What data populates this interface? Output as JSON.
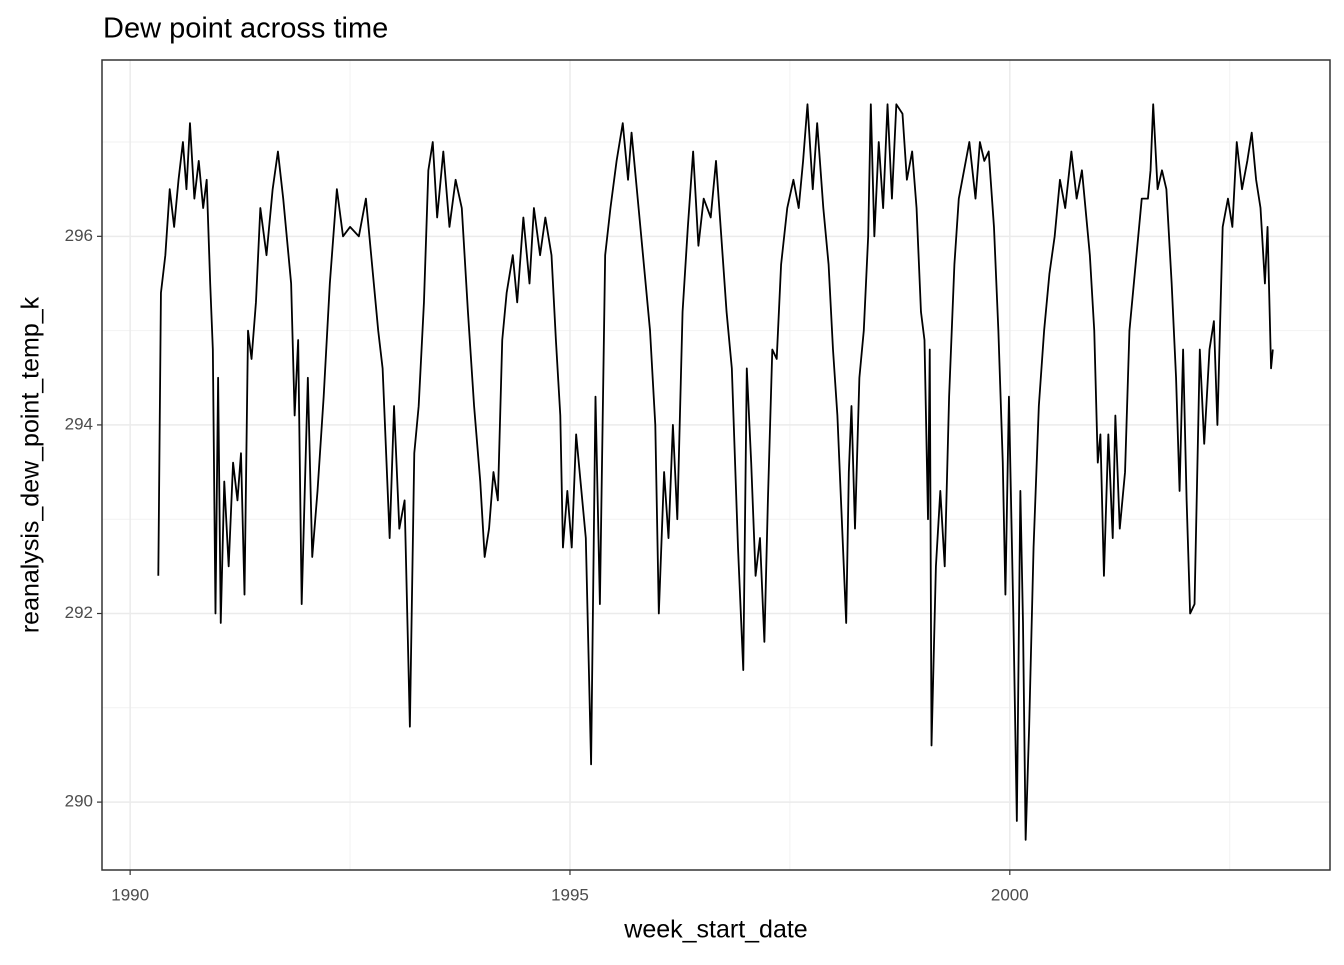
{
  "chart_data": {
    "type": "line",
    "title": "Dew point across time",
    "x_label": "week_start_date",
    "y_label": "reanalysis_dew_point_temp_k",
    "color": "#000000",
    "grid": true,
    "xlim": [
      1989.68,
      2003.64
    ],
    "ylim": [
      289.28,
      297.87
    ],
    "xticks": [
      1990,
      1995,
      2000
    ],
    "yticks": [
      290,
      292,
      294,
      296
    ],
    "minor_xticks": [
      1992.5,
      1997.5,
      2002.5
    ],
    "minor_yticks": [
      291,
      293,
      295,
      297
    ],
    "x": [
      1990.32,
      1990.35,
      1990.4,
      1990.45,
      1990.5,
      1990.55,
      1990.6,
      1990.64,
      1990.68,
      1990.73,
      1990.78,
      1990.83,
      1990.87,
      1990.91,
      1990.94,
      1990.97,
      1991.0,
      1991.03,
      1991.07,
      1991.12,
      1991.17,
      1991.22,
      1991.26,
      1991.3,
      1991.34,
      1991.38,
      1991.43,
      1991.48,
      1991.55,
      1991.62,
      1991.68,
      1991.74,
      1991.79,
      1991.83,
      1991.87,
      1991.91,
      1991.95,
      1992.02,
      1992.07,
      1992.13,
      1992.2,
      1992.27,
      1992.35,
      1992.42,
      1992.5,
      1992.6,
      1992.68,
      1992.74,
      1992.82,
      1992.87,
      1992.95,
      1993.0,
      1993.06,
      1993.12,
      1993.18,
      1993.23,
      1993.28,
      1993.34,
      1993.39,
      1993.44,
      1993.49,
      1993.56,
      1993.63,
      1993.7,
      1993.77,
      1993.84,
      1993.91,
      1993.98,
      1994.03,
      1994.08,
      1994.13,
      1994.18,
      1994.23,
      1994.28,
      1994.35,
      1994.4,
      1994.47,
      1994.54,
      1994.59,
      1994.66,
      1994.72,
      1994.79,
      1994.84,
      1994.89,
      1994.92,
      1994.97,
      1995.02,
      1995.07,
      1995.12,
      1995.18,
      1995.24,
      1995.29,
      1995.34,
      1995.4,
      1995.46,
      1995.53,
      1995.6,
      1995.66,
      1995.7,
      1995.78,
      1995.85,
      1995.91,
      1995.97,
      1996.01,
      1996.07,
      1996.12,
      1996.17,
      1996.22,
      1996.28,
      1996.34,
      1996.4,
      1996.46,
      1996.52,
      1996.6,
      1996.66,
      1996.72,
      1996.78,
      1996.84,
      1996.91,
      1996.97,
      1997.01,
      1997.06,
      1997.11,
      1997.16,
      1997.21,
      1997.25,
      1997.3,
      1997.35,
      1997.4,
      1997.47,
      1997.54,
      1997.6,
      1997.65,
      1997.7,
      1997.76,
      1997.81,
      1997.88,
      1997.94,
      1997.99,
      1998.04,
      1998.14,
      1998.17,
      1998.2,
      1998.24,
      1998.29,
      1998.34,
      1998.39,
      1998.42,
      1998.46,
      1998.51,
      1998.56,
      1998.61,
      1998.66,
      1998.71,
      1998.78,
      1998.83,
      1998.89,
      1998.94,
      1998.99,
      1999.03,
      1999.07,
      1999.09,
      1999.11,
      1999.16,
      1999.21,
      1999.26,
      1999.31,
      1999.37,
      1999.42,
      1999.48,
      1999.54,
      1999.61,
      1999.66,
      1999.71,
      1999.76,
      1999.82,
      1999.87,
      1999.92,
      1999.95,
      1999.99,
      2000.04,
      2000.08,
      2000.12,
      2000.15,
      2000.18,
      2000.22,
      2000.27,
      2000.33,
      2000.39,
      2000.45,
      2000.51,
      2000.57,
      2000.63,
      2000.7,
      2000.76,
      2000.82,
      2000.85,
      2000.91,
      2000.96,
      2001.0,
      2001.03,
      2001.07,
      2001.12,
      2001.17,
      2001.2,
      2001.25,
      2001.31,
      2001.36,
      2001.42,
      2001.5,
      2001.57,
      2001.6,
      2001.63,
      2001.68,
      2001.73,
      2001.78,
      2001.84,
      2001.89,
      2001.93,
      2001.97,
      2002.01,
      2002.05,
      2002.1,
      2002.16,
      2002.21,
      2002.27,
      2002.32,
      2002.36,
      2002.42,
      2002.48,
      2002.53,
      2002.58,
      2002.64,
      2002.7,
      2002.75,
      2002.8,
      2002.85,
      2002.9,
      2002.93,
      2002.97,
      2002.99
    ],
    "values": [
      292.4,
      295.4,
      295.8,
      296.5,
      296.1,
      296.6,
      297.0,
      296.5,
      297.2,
      296.4,
      296.8,
      296.3,
      296.6,
      295.5,
      294.8,
      292.0,
      294.5,
      291.9,
      293.4,
      292.5,
      293.6,
      293.2,
      293.7,
      292.2,
      295.0,
      294.7,
      295.3,
      296.3,
      295.8,
      296.5,
      296.9,
      296.4,
      295.9,
      295.5,
      294.1,
      294.9,
      292.1,
      294.5,
      292.6,
      293.3,
      294.3,
      295.5,
      296.5,
      296.0,
      296.1,
      296.0,
      296.4,
      295.8,
      295.0,
      294.6,
      292.8,
      294.2,
      292.9,
      293.2,
      290.8,
      293.7,
      294.2,
      295.3,
      296.7,
      297.0,
      296.2,
      296.9,
      296.1,
      296.6,
      296.3,
      295.2,
      294.2,
      293.4,
      292.6,
      292.9,
      293.5,
      293.2,
      294.9,
      295.4,
      295.8,
      295.3,
      296.2,
      295.5,
      296.3,
      295.8,
      296.2,
      295.8,
      294.9,
      294.1,
      292.7,
      293.3,
      292.7,
      293.9,
      293.4,
      292.8,
      290.4,
      294.3,
      292.1,
      295.8,
      296.3,
      296.8,
      297.2,
      296.6,
      297.1,
      296.3,
      295.6,
      295.0,
      294.0,
      292.0,
      293.5,
      292.8,
      294.0,
      293.0,
      295.2,
      296.1,
      296.9,
      295.9,
      296.4,
      296.2,
      296.8,
      296.0,
      295.2,
      294.6,
      292.7,
      291.4,
      294.6,
      293.6,
      292.4,
      292.8,
      291.7,
      293.2,
      294.8,
      294.7,
      295.7,
      296.3,
      296.6,
      296.3,
      296.8,
      297.4,
      296.5,
      297.2,
      296.3,
      295.7,
      294.8,
      294.1,
      291.9,
      293.5,
      294.2,
      292.9,
      294.5,
      295.0,
      296.0,
      297.4,
      296.0,
      297.0,
      296.3,
      297.4,
      296.4,
      297.4,
      297.3,
      296.6,
      296.9,
      296.3,
      295.2,
      294.9,
      293.0,
      294.8,
      290.6,
      292.5,
      293.3,
      292.5,
      294.3,
      295.7,
      296.4,
      296.7,
      297.0,
      296.4,
      297.0,
      296.8,
      296.9,
      296.1,
      295.0,
      293.6,
      292.2,
      294.3,
      292.0,
      289.8,
      293.3,
      291.9,
      289.6,
      290.8,
      292.7,
      294.2,
      295.0,
      295.6,
      296.0,
      296.6,
      296.3,
      296.9,
      296.4,
      296.7,
      296.4,
      295.8,
      295.0,
      293.6,
      293.9,
      292.4,
      293.9,
      292.8,
      294.1,
      292.9,
      293.5,
      295.0,
      295.6,
      296.4,
      296.4,
      296.7,
      297.4,
      296.5,
      296.7,
      296.5,
      295.5,
      294.5,
      293.3,
      294.8,
      293.2,
      292.0,
      292.1,
      294.8,
      293.8,
      294.8,
      295.1,
      294.0,
      296.1,
      296.4,
      296.1,
      297.0,
      296.5,
      296.8,
      297.1,
      296.6,
      296.3,
      295.5,
      296.1,
      294.6,
      294.8
    ]
  }
}
